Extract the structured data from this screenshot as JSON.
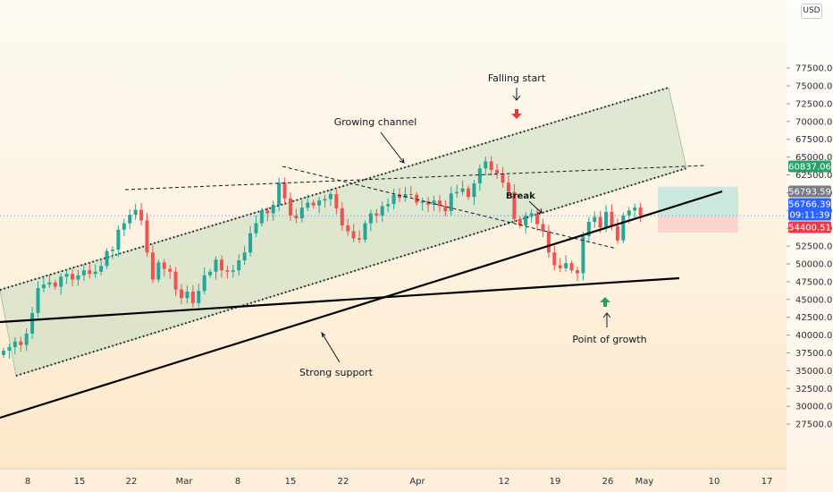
{
  "currency": "USD",
  "chart_data": {
    "type": "candlestick",
    "y_ticks": [
      27500,
      30000,
      32500,
      35000,
      37500,
      40000,
      42500,
      45000,
      47500,
      50000,
      52500,
      55000,
      57500,
      60000,
      62500,
      65000,
      67500,
      70000,
      72500,
      75000,
      77500
    ],
    "y_tick_labels": [
      "27500.00",
      "30000.00",
      "32500.00",
      "35000.00",
      "37500.00",
      "40000.00",
      "42500.00",
      "45000.00",
      "47500.00",
      "50000.00",
      "52500.00",
      "55000.00",
      "57500.00",
      "60000.00",
      "62500.00",
      "65000.00",
      "67500.00",
      "70000.00",
      "72500.00",
      "75000.00",
      "77500.00"
    ],
    "ylim": [
      26500,
      79000
    ],
    "x_axis": [
      "8",
      "15",
      "22",
      "Mar",
      "8",
      "15",
      "22",
      "Apr",
      "12",
      "19",
      "26",
      "May",
      "10",
      "17"
    ],
    "closes": [
      37800,
      38300,
      39100,
      38600,
      40200,
      43100,
      46600,
      47100,
      47400,
      46800,
      48200,
      48600,
      47800,
      48400,
      49100,
      48600,
      48900,
      49700,
      51800,
      52000,
      54800,
      55700,
      56900,
      57600,
      56100,
      51600,
      47800,
      50200,
      49300,
      48900,
      46400,
      45200,
      46100,
      44500,
      46200,
      48400,
      48900,
      50600,
      49100,
      48900,
      49100,
      50500,
      51600,
      54300,
      55700,
      57500,
      57100,
      58300,
      61400,
      59200,
      56800,
      56400,
      57900,
      58600,
      58200,
      58900,
      59100,
      59800,
      57800,
      55400,
      54600,
      53600,
      53400,
      55700,
      57100,
      56800,
      58100,
      58400,
      59700,
      59300,
      59800,
      59700,
      58600,
      58800,
      58300,
      58900,
      58100,
      57400,
      59900,
      60100,
      60600,
      59400,
      61300,
      63400,
      64400,
      63200,
      62700,
      61400,
      60100,
      56300,
      55400,
      56800,
      57100,
      55600,
      54600,
      51600,
      49800,
      49400,
      50100,
      49100,
      48700,
      53900,
      55900,
      56600,
      55100,
      57300,
      55300,
      53300,
      56800,
      57500,
      57900,
      56800
    ]
  },
  "annotations": {
    "falling_start": "Falling start",
    "growing_channel": "Growing channel",
    "break": "Break",
    "strong_support": "Strong support",
    "point_of_growth": "Point of growth"
  },
  "price_badges": [
    {
      "label": "60837.06",
      "value": 60837.06,
      "color": "#26a269"
    },
    {
      "label": "56793.59",
      "value": 56793.59,
      "color": "#787b86"
    },
    {
      "label": "56766.39",
      "value": 56766.39,
      "color": "#2962ff"
    },
    {
      "label": "09:11:39",
      "value": 55400,
      "color": "#2962ff"
    },
    {
      "label": "54400.51",
      "value": 54400.51,
      "color": "#f23645"
    }
  ],
  "colors": {
    "up": "#26a69a",
    "down": "#ef5350",
    "channel_fill": "#c5dcc0",
    "target_fill": "#b9e4dc",
    "stop_fill": "#f9cdc8",
    "up_arrow": "#26a269",
    "down_arrow": "#e53935"
  }
}
